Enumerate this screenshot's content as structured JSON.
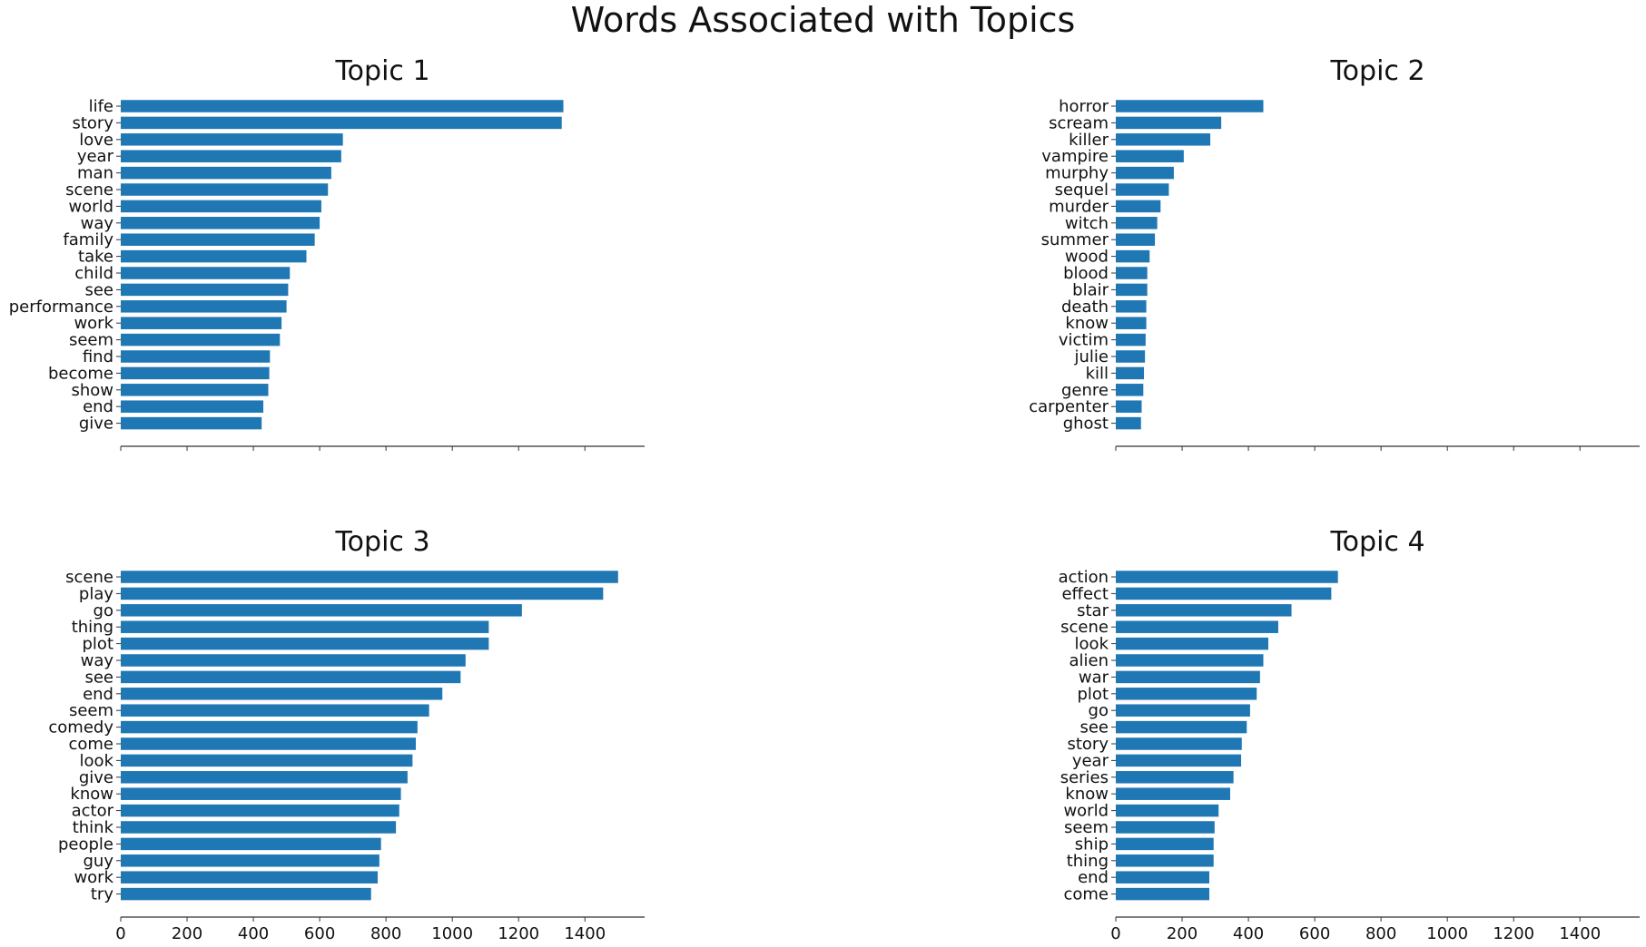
{
  "title": "Words Associated with Topics",
  "bar_color": "#1f77b4",
  "chart_data": [
    {
      "type": "bar",
      "orientation": "horizontal",
      "title": "Topic 1",
      "categories": [
        "life",
        "story",
        "love",
        "year",
        "man",
        "scene",
        "world",
        "way",
        "family",
        "take",
        "child",
        "see",
        "performance",
        "work",
        "seem",
        "find",
        "become",
        "show",
        "end",
        "give"
      ],
      "values": [
        1335,
        1330,
        670,
        665,
        635,
        625,
        605,
        600,
        585,
        560,
        510,
        505,
        500,
        485,
        480,
        450,
        448,
        445,
        430,
        425
      ],
      "xlim": [
        0,
        1580
      ],
      "xticks": [
        0,
        200,
        400,
        600,
        800,
        1000,
        1200,
        1400
      ],
      "show_xtick_labels": false
    },
    {
      "type": "bar",
      "orientation": "horizontal",
      "title": "Topic 2",
      "categories": [
        "horror",
        "scream",
        "killer",
        "vampire",
        "murphy",
        "sequel",
        "murder",
        "witch",
        "summer",
        "wood",
        "blood",
        "blair",
        "death",
        "know",
        "victim",
        "julie",
        "kill",
        "genre",
        "carpenter",
        "ghost"
      ],
      "values": [
        445,
        318,
        285,
        205,
        175,
        160,
        135,
        125,
        118,
        102,
        95,
        95,
        92,
        92,
        90,
        88,
        85,
        83,
        78,
        76
      ],
      "xlim": [
        0,
        1580
      ],
      "xticks": [
        0,
        200,
        400,
        600,
        800,
        1000,
        1200,
        1400
      ],
      "show_xtick_labels": false
    },
    {
      "type": "bar",
      "orientation": "horizontal",
      "title": "Topic 3",
      "categories": [
        "scene",
        "play",
        "go",
        "thing",
        "plot",
        "way",
        "see",
        "end",
        "seem",
        "comedy",
        "come",
        "look",
        "give",
        "know",
        "actor",
        "think",
        "people",
        "guy",
        "work",
        "try"
      ],
      "values": [
        1500,
        1455,
        1210,
        1110,
        1110,
        1040,
        1025,
        970,
        930,
        895,
        890,
        880,
        865,
        845,
        840,
        830,
        785,
        780,
        775,
        755
      ],
      "xlim": [
        0,
        1580
      ],
      "xticks": [
        0,
        200,
        400,
        600,
        800,
        1000,
        1200,
        1400
      ],
      "show_xtick_labels": true
    },
    {
      "type": "bar",
      "orientation": "horizontal",
      "title": "Topic 4",
      "categories": [
        "action",
        "effect",
        "star",
        "scene",
        "look",
        "alien",
        "war",
        "plot",
        "go",
        "see",
        "story",
        "year",
        "series",
        "know",
        "world",
        "seem",
        "ship",
        "thing",
        "end",
        "come"
      ],
      "values": [
        670,
        650,
        530,
        490,
        460,
        445,
        435,
        425,
        405,
        395,
        380,
        378,
        355,
        345,
        310,
        298,
        295,
        295,
        282,
        282
      ],
      "xlim": [
        0,
        1580
      ],
      "xticks": [
        0,
        200,
        400,
        600,
        800,
        1000,
        1200,
        1400
      ],
      "show_xtick_labels": true
    }
  ]
}
